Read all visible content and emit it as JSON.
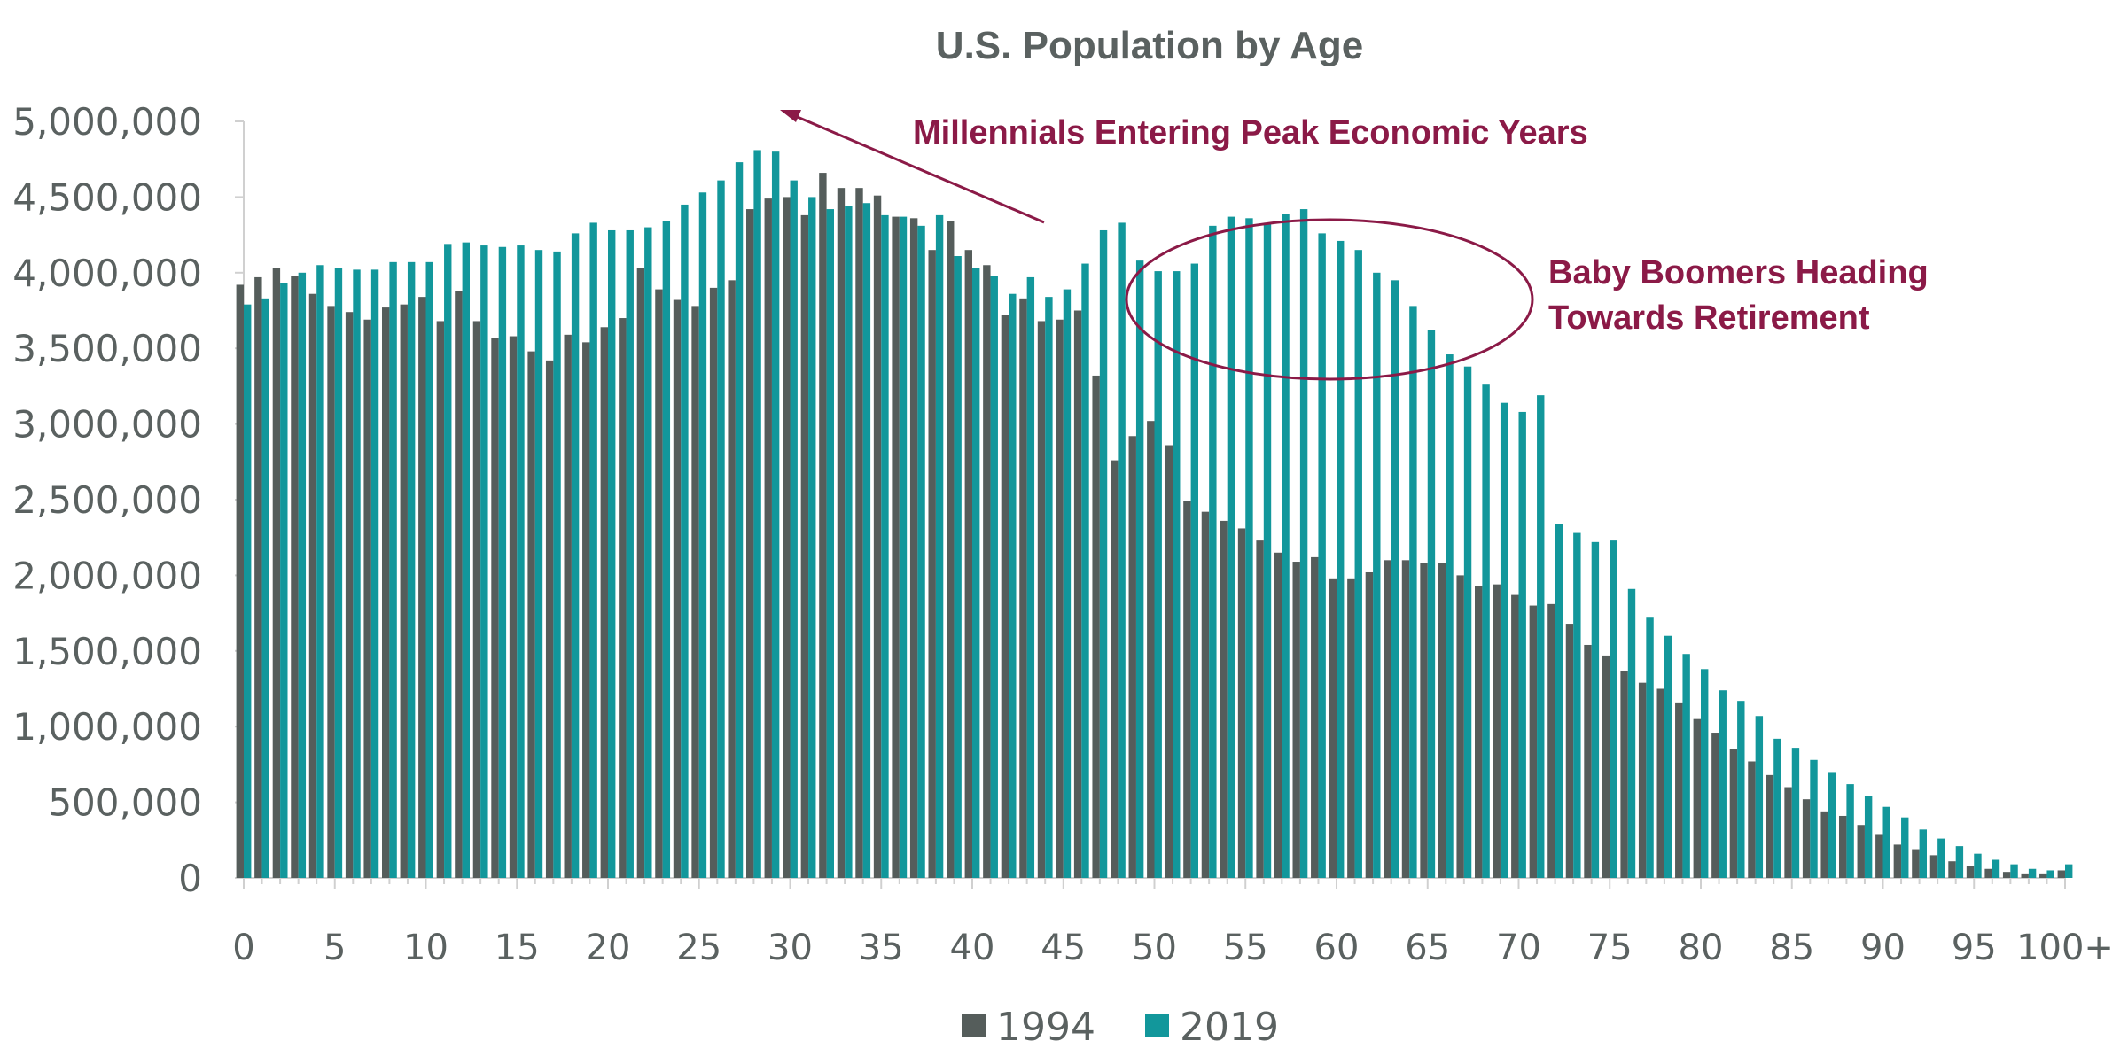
{
  "chart_data": {
    "type": "bar",
    "title": "U.S. Population by Age",
    "xlabel": "",
    "ylabel": "",
    "ylim": [
      0,
      5000000
    ],
    "yticks": [
      0,
      500000,
      1000000,
      1500000,
      2000000,
      2500000,
      3000000,
      3500000,
      4000000,
      4500000,
      5000000
    ],
    "ytick_labels": [
      "0",
      "500,000",
      "1,000,000",
      "1,500,000",
      "2,000,000",
      "2,500,000",
      "3,000,000",
      "3,500,000",
      "4,000,000",
      "4,500,000",
      "5,000,000"
    ],
    "xtick_labels": [
      "0",
      "5",
      "10",
      "15",
      "20",
      "25",
      "30",
      "35",
      "40",
      "45",
      "50",
      "55",
      "60",
      "65",
      "70",
      "75",
      "80",
      "85",
      "90",
      "95",
      "100+"
    ],
    "grid": false,
    "legend_position": "bottom",
    "categories": [
      "0",
      "1",
      "2",
      "3",
      "4",
      "5",
      "6",
      "7",
      "8",
      "9",
      "10",
      "11",
      "12",
      "13",
      "14",
      "15",
      "16",
      "17",
      "18",
      "19",
      "20",
      "21",
      "22",
      "23",
      "24",
      "25",
      "26",
      "27",
      "28",
      "29",
      "30",
      "31",
      "32",
      "33",
      "34",
      "35",
      "36",
      "37",
      "38",
      "39",
      "40",
      "41",
      "42",
      "43",
      "44",
      "45",
      "46",
      "47",
      "48",
      "49",
      "50",
      "51",
      "52",
      "53",
      "54",
      "55",
      "56",
      "57",
      "58",
      "59",
      "60",
      "61",
      "62",
      "63",
      "64",
      "65",
      "66",
      "67",
      "68",
      "69",
      "70",
      "71",
      "72",
      "73",
      "74",
      "75",
      "76",
      "77",
      "78",
      "79",
      "80",
      "81",
      "82",
      "83",
      "84",
      "85",
      "86",
      "87",
      "88",
      "89",
      "90",
      "91",
      "92",
      "93",
      "94",
      "95",
      "96",
      "97",
      "98",
      "99",
      "100+"
    ],
    "series": [
      {
        "name": "1994",
        "color": "#555d5b",
        "values": [
          3920000,
          3970000,
          4030000,
          3980000,
          3860000,
          3780000,
          3740000,
          3690000,
          3770000,
          3790000,
          3840000,
          3680000,
          3880000,
          3680000,
          3570000,
          3580000,
          3480000,
          3420000,
          3590000,
          3540000,
          3640000,
          3700000,
          4030000,
          3890000,
          3820000,
          3780000,
          3900000,
          3950000,
          4420000,
          4490000,
          4500000,
          4380000,
          4660000,
          4560000,
          4560000,
          4510000,
          4370000,
          4360000,
          4150000,
          4340000,
          4150000,
          4050000,
          3720000,
          3830000,
          3680000,
          3690000,
          3750000,
          3320000,
          2760000,
          2920000,
          3020000,
          2860000,
          2490000,
          2420000,
          2360000,
          2310000,
          2230000,
          2150000,
          2090000,
          2120000,
          1980000,
          1980000,
          2020000,
          2100000,
          2100000,
          2080000,
          2080000,
          2000000,
          1930000,
          1940000,
          1870000,
          1800000,
          1810000,
          1680000,
          1540000,
          1470000,
          1370000,
          1290000,
          1250000,
          1160000,
          1050000,
          960000,
          850000,
          770000,
          680000,
          600000,
          520000,
          440000,
          410000,
          350000,
          290000,
          220000,
          190000,
          150000,
          110000,
          80000,
          60000,
          40000,
          30000,
          30000,
          50000
        ]
      },
      {
        "name": "2019",
        "color": "#12979b",
        "values": [
          3790000,
          3830000,
          3930000,
          4000000,
          4050000,
          4030000,
          4020000,
          4020000,
          4070000,
          4070000,
          4070000,
          4190000,
          4200000,
          4180000,
          4170000,
          4180000,
          4150000,
          4140000,
          4260000,
          4330000,
          4280000,
          4280000,
          4300000,
          4340000,
          4450000,
          4530000,
          4610000,
          4730000,
          4810000,
          4800000,
          4610000,
          4500000,
          4420000,
          4440000,
          4460000,
          4380000,
          4370000,
          4310000,
          4380000,
          4110000,
          4030000,
          3980000,
          3860000,
          3970000,
          3840000,
          3890000,
          4060000,
          4280000,
          4330000,
          4080000,
          4010000,
          4010000,
          4060000,
          4310000,
          4370000,
          4360000,
          4330000,
          4390000,
          4420000,
          4260000,
          4210000,
          4150000,
          4000000,
          3950000,
          3780000,
          3620000,
          3460000,
          3380000,
          3260000,
          3140000,
          3080000,
          3190000,
          2340000,
          2280000,
          2220000,
          2230000,
          1910000,
          1720000,
          1600000,
          1480000,
          1380000,
          1240000,
          1170000,
          1070000,
          920000,
          860000,
          780000,
          700000,
          620000,
          540000,
          470000,
          400000,
          320000,
          260000,
          210000,
          160000,
          120000,
          90000,
          60000,
          50000,
          90000
        ]
      }
    ],
    "annotations": [
      "Millennials Entering Peak Economic Years",
      "Baby Boomers Heading",
      "Towards Retirement"
    ]
  }
}
